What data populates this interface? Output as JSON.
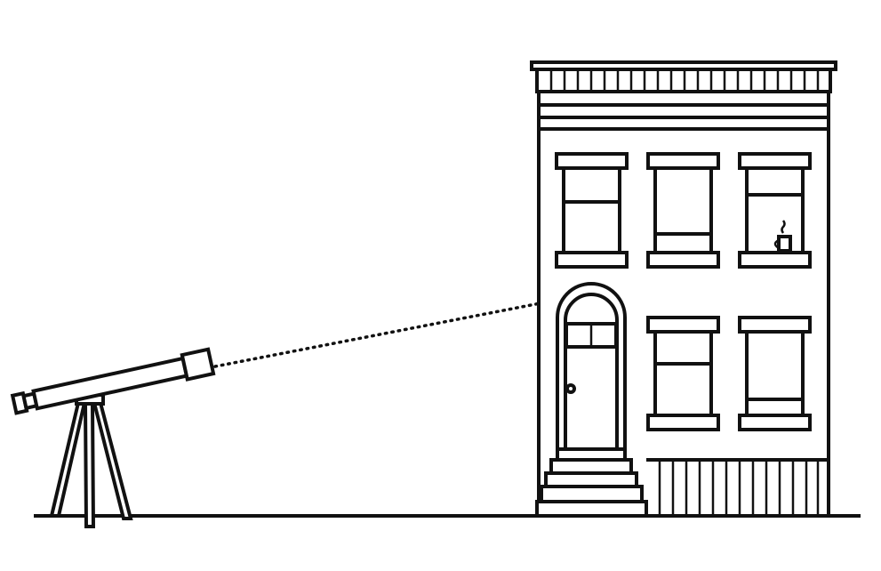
{
  "scene": {
    "background": "#ffffff",
    "ink": "#111111",
    "objects": [
      "telescope-on-tripod",
      "row-house",
      "coffee-mug-on-sill",
      "dotted-line-of-sight",
      "ground-line"
    ]
  }
}
